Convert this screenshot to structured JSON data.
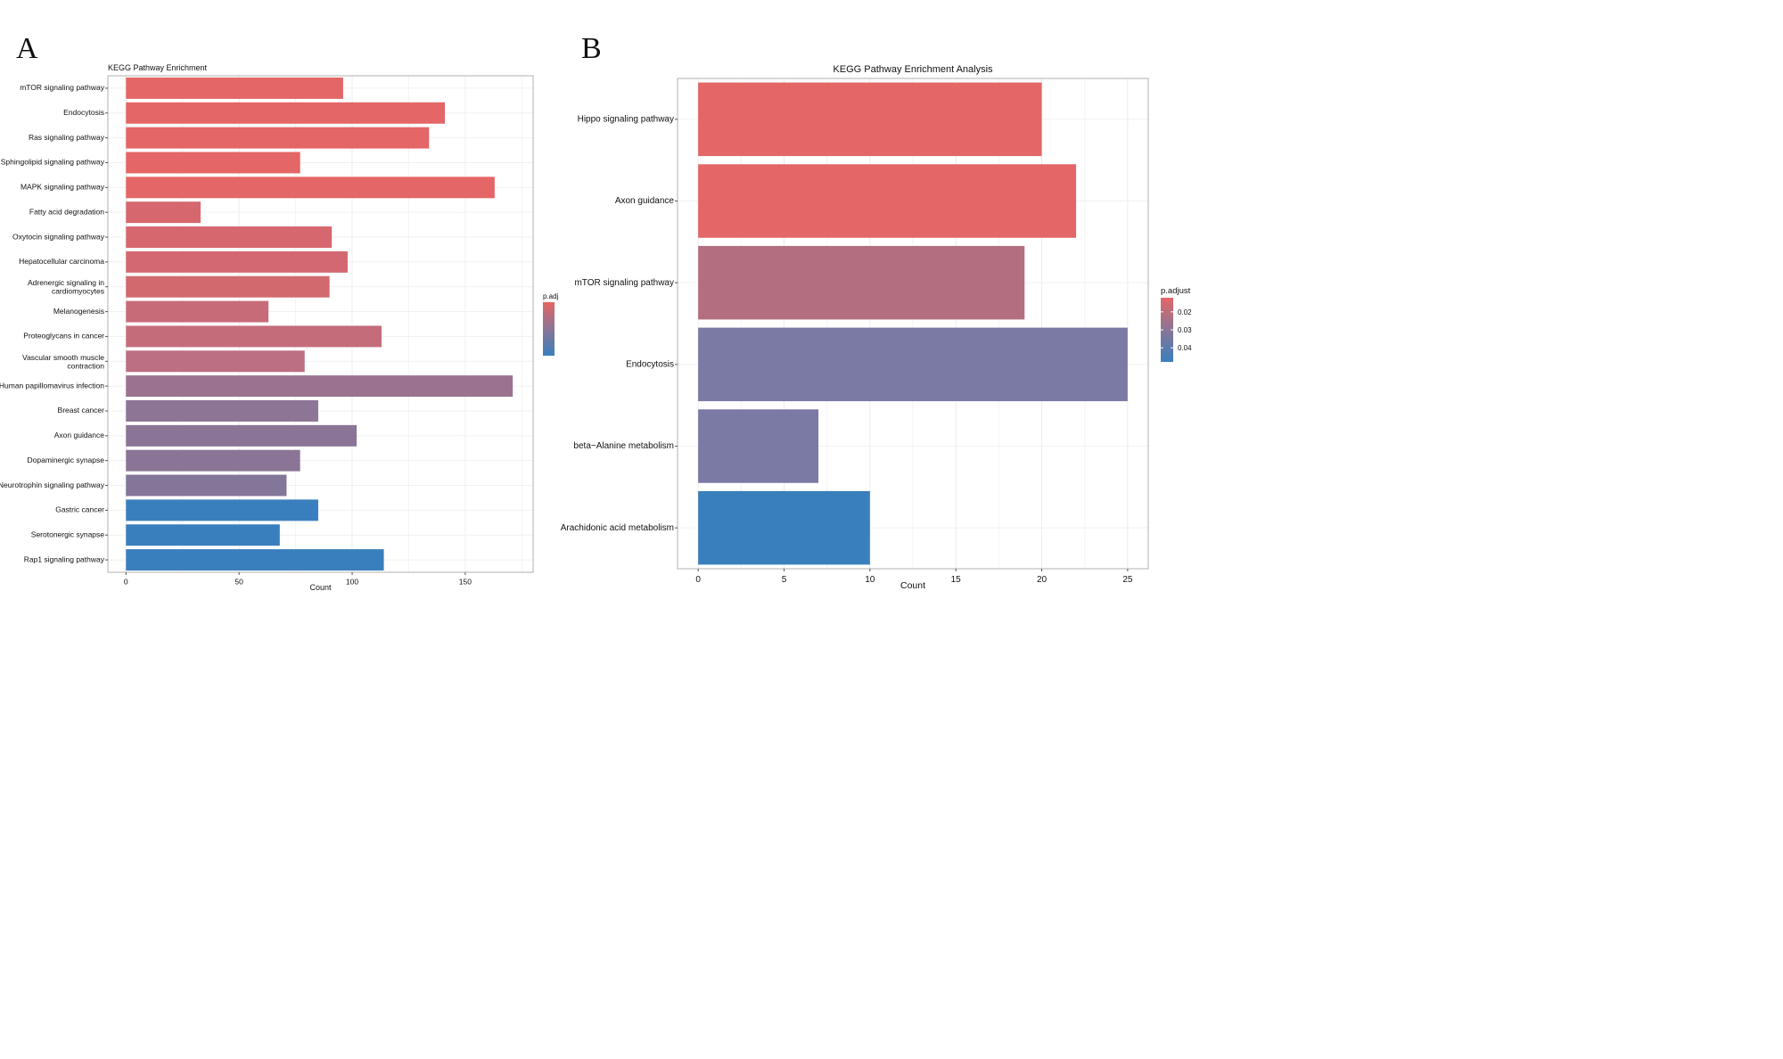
{
  "panels": {
    "a": {
      "letter": "A"
    },
    "b": {
      "letter": "B"
    }
  },
  "colors": {
    "low_padj": "#e46666",
    "high_padj": "#3a7fbd",
    "mid_padj": "#7b7aa5",
    "grid": "#ececec",
    "frame": "#b0b0b0"
  },
  "chart_data": [
    {
      "type": "bar",
      "orientation": "horizontal",
      "title": "KEGG Pathway Enrichment",
      "xlabel": "Count",
      "ylabel": "",
      "xlim": [
        -8,
        180
      ],
      "xticks": [
        0,
        50,
        100,
        150
      ],
      "legend": {
        "title": "p.adj",
        "placement": "right",
        "gradient": [
          "#e46666",
          "#3a7fbd"
        ]
      },
      "categories": [
        "mTOR signaling pathway",
        "Endocytosis",
        "Ras signaling pathway",
        "Sphingolipid signaling pathway",
        "MAPK signaling pathway",
        "Fatty acid degradation",
        "Oxytocin signaling pathway",
        "Hepatocellular carcinoma",
        "Adrenergic signaling in cardiomyocytes",
        "Melanogenesis",
        "Proteoglycans in cancer",
        "Vascular smooth muscle contraction",
        "Human papillomavirus infection",
        "Breast cancer",
        "Axon guidance",
        "Dopaminergic synapse",
        "Neurotrophin signaling pathway",
        "Gastric cancer",
        "Serotonergic synapse",
        "Rap1 signaling pathway"
      ],
      "values": [
        96,
        141,
        134,
        77,
        163,
        33,
        91,
        98,
        90,
        63,
        113,
        79,
        171,
        85,
        102,
        77,
        71,
        85,
        68,
        114
      ],
      "colors": [
        "#e46666",
        "#e46666",
        "#e46666",
        "#e46666",
        "#e46666",
        "#d7676f",
        "#d7676f",
        "#d46870",
        "#d1696f",
        "#c86b79",
        "#c56c7b",
        "#bc6e82",
        "#9b7391",
        "#8d7596",
        "#8b7596",
        "#8a7596",
        "#847699",
        "#3a7fbd",
        "#3a7fbd",
        "#3a7fbd"
      ]
    },
    {
      "type": "bar",
      "orientation": "horizontal",
      "title": "KEGG Pathway Enrichment Analysis",
      "xlabel": "Count",
      "ylabel": "",
      "xlim": [
        -1.2,
        26.2
      ],
      "xticks": [
        0,
        5,
        10,
        15,
        20,
        25
      ],
      "legend": {
        "title": "p.adjust",
        "placement": "right",
        "ticks": [
          "0.02",
          "0.03",
          "0.04"
        ],
        "gradient": [
          "#e46666",
          "#3a7fbd"
        ]
      },
      "categories": [
        "Hippo signaling pathway",
        "Axon guidance",
        "mTOR signaling pathway",
        "Endocytosis",
        "beta−Alanine metabolism",
        "Arachidonic acid metabolism"
      ],
      "values": [
        20,
        22,
        19,
        25,
        7,
        10
      ],
      "colors": [
        "#e46666",
        "#e46666",
        "#b36f7f",
        "#7b7aa5",
        "#7b7aa5",
        "#3a7fbd"
      ]
    }
  ]
}
